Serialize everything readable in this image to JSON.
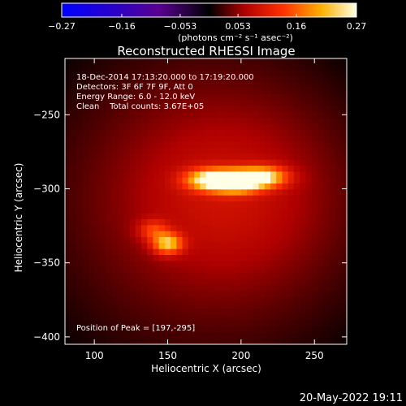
{
  "chart_data": {
    "type": "heatmap",
    "title": "Reconstructed RHESSI Image",
    "xlabel": "Heliocentric X (arcsec)",
    "ylabel": "Heliocentric Y (arcsec)",
    "xlim": [
      80,
      272
    ],
    "ylim": [
      -405,
      -212
    ],
    "xticks": [
      100,
      150,
      200,
      250
    ],
    "xtick_labels": [
      "100",
      "150",
      "200",
      "250"
    ],
    "yticks": [
      -250,
      -300,
      -350,
      -400
    ],
    "ytick_labels": [
      "−250",
      "−300",
      "−350",
      "−400"
    ],
    "colorbar": {
      "range": [
        -0.27,
        0.27
      ],
      "ticks": [
        -0.27,
        -0.16,
        -0.053,
        0.053,
        0.16,
        0.27
      ],
      "tick_labels": [
        "−0.27",
        "−0.16",
        "−0.053",
        "0.053",
        "0.16",
        "0.27"
      ],
      "unit_label": "(photons cm⁻² s⁻¹ asec⁻²)"
    },
    "annotations": [
      "18-Dec-2014 17:13:20.000 to 17:19:20.000",
      "Detectors: 3F 6F 7F 9F, Att 0",
      "Energy Range: 6.0 - 12.0 keV",
      "Clean    Total counts: 3.67E+05"
    ],
    "peak_label": "Position of Peak = [197,-295]",
    "sources": [
      {
        "x": 197,
        "y": -295,
        "intensity": 0.27
      },
      {
        "x": 178,
        "y": -294,
        "intensity": 0.19
      },
      {
        "x": 216,
        "y": -292,
        "intensity": 0.17
      },
      {
        "x": 150,
        "y": -337,
        "intensity": 0.17
      },
      {
        "x": 140,
        "y": -328,
        "intensity": 0.08
      }
    ],
    "background_intensity": 0.04
  },
  "footer": {
    "date": "20-May-2022 19:11"
  }
}
